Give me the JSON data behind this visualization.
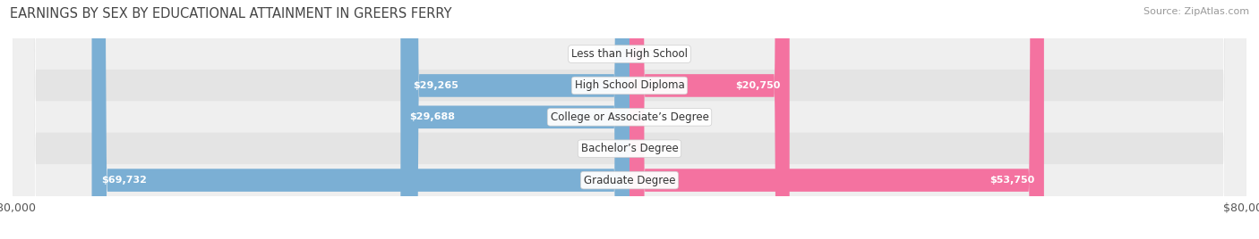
{
  "title": "EARNINGS BY SEX BY EDUCATIONAL ATTAINMENT IN GREERS FERRY",
  "source": "Source: ZipAtlas.com",
  "categories": [
    "Less than High School",
    "High School Diploma",
    "College or Associate’s Degree",
    "Bachelor’s Degree",
    "Graduate Degree"
  ],
  "male_values": [
    0,
    29265,
    29688,
    0,
    69732
  ],
  "female_values": [
    0,
    20750,
    0,
    0,
    53750
  ],
  "male_color": "#7bafd4",
  "female_color": "#f472a0",
  "row_bg_colors": [
    "#efefef",
    "#e4e4e4"
  ],
  "max_value": 80000,
  "label_color_dark": "#555555",
  "label_color_white": "#ffffff",
  "title_fontsize": 10.5,
  "source_fontsize": 8,
  "bar_height": 0.72,
  "male_color_legend": "#7bafd4",
  "female_color_legend": "#f472a0"
}
